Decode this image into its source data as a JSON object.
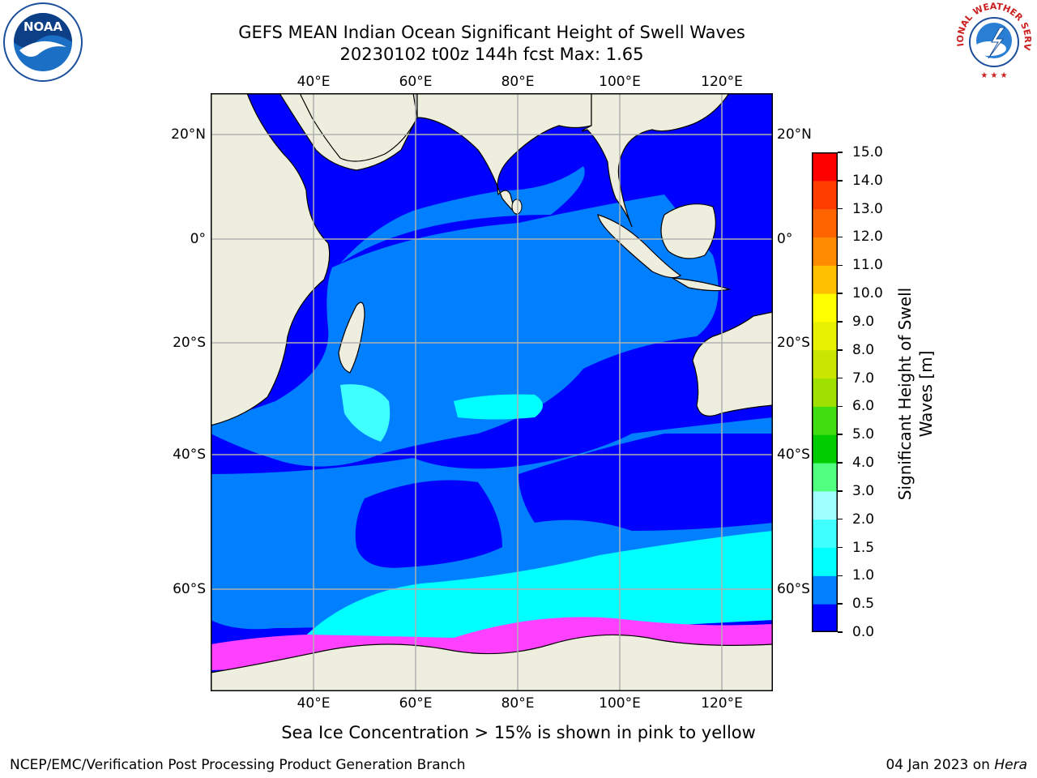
{
  "title_line1": "GEFS MEAN Indian Ocean Significant Height of Swell Waves",
  "title_line2": "20230102 t00z 144h fcst   Max: 1.65",
  "lon_labels": [
    "40°E",
    "60°E",
    "80°E",
    "100°E",
    "120°E"
  ],
  "lat_labels": [
    "20°N",
    "0°",
    "20°S",
    "40°S",
    "60°S"
  ],
  "colorbar": {
    "title_line1": "Significant Height of Swell",
    "title_line2": "Waves [m]",
    "ticks": [
      "0.0",
      "0.5",
      "1.0",
      "1.5",
      "2.0",
      "3.0",
      "4.0",
      "5.0",
      "6.0",
      "7.0",
      "8.0",
      "9.0",
      "10.0",
      "11.0",
      "12.0",
      "13.0",
      "14.0",
      "15.0"
    ],
    "colors": [
      "#0000ff",
      "#0080ff",
      "#00ffff",
      "#40ffff",
      "#a0ffff",
      "#50ff80",
      "#00cc00",
      "#40dd10",
      "#a0e000",
      "#c8e600",
      "#e6f000",
      "#ffff00",
      "#ffc000",
      "#ff8c00",
      "#ff6400",
      "#ff3c00",
      "#ff0000"
    ]
  },
  "map_colors": {
    "land": "#eeeede",
    "grid": "#b0b0b0",
    "deep": "#0000ff",
    "mid": "#0080ff",
    "light": "#00ffff",
    "ice": "#ff40ff"
  },
  "sea_ice_note": "Sea Ice Concentration > 15% is shown in pink to yellow",
  "footer_left": "NCEP/EMC/Verification Post Processing Product Generation Branch",
  "footer_right_prefix": "04 Jan 2023 on ",
  "footer_right_host": "Hera",
  "logo_left_text": "NOAA",
  "logo_right_text": "NATIONAL WEATHER SERVICE"
}
